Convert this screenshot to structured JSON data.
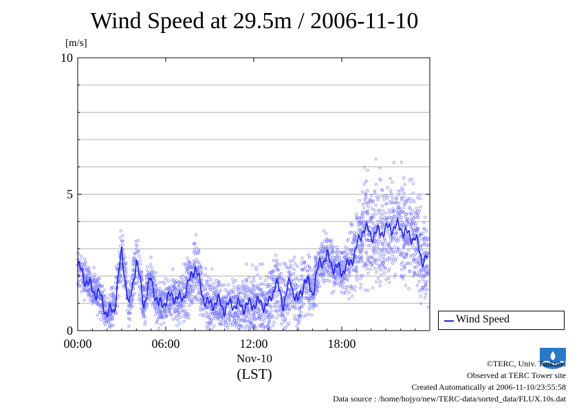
{
  "title": "Wind Speed at 29.5m / 2006-11-10",
  "y_unit": "[m/s]",
  "x_date_label": "Nov-10",
  "x_tz_label": "(LST)",
  "legend": {
    "label": "Wind Speed"
  },
  "footer": {
    "copyright": "©TERC, Univ. Tsukuba",
    "observed": "Observed at TERC Tower site",
    "created": "Created Automatically at 2006-11-10/23:55:58",
    "source": "Data source : /home/hojyo/new/TERC-data/sorted_data/FLUX.10s.dat"
  },
  "logo": {
    "text": "TERC",
    "color": "#2a78c8"
  },
  "colors": {
    "line": "#2222dd",
    "points": "#8080ff",
    "grid": "#b0b0b0"
  },
  "chart_data": {
    "type": "line",
    "title": "Wind Speed at 29.5m / 2006-11-10",
    "ylabel": "[m/s]",
    "xlabel": "Nov-10 (LST)",
    "ylim": [
      0,
      10
    ],
    "xlim": [
      0,
      24
    ],
    "x_ticks": [
      0,
      6,
      12,
      18
    ],
    "x_tick_labels": [
      "00:00",
      "06:00",
      "12:00",
      "18:00"
    ],
    "y_ticks": [
      0,
      5,
      10
    ],
    "y_tick_labels": [
      "0",
      "5",
      "10"
    ],
    "grid": true,
    "legend_position": "bottom-right outside",
    "series": [
      {
        "name": "Wind Speed",
        "x": [
          0,
          0.5,
          1,
          1.5,
          2,
          2.5,
          3,
          3.5,
          4,
          4.5,
          5,
          5.5,
          6,
          6.5,
          7,
          7.5,
          8,
          8.5,
          9,
          9.5,
          10,
          10.5,
          11,
          11.5,
          12,
          12.5,
          13,
          13.5,
          14,
          14.5,
          15,
          15.5,
          16,
          16.5,
          17,
          17.5,
          18,
          18.5,
          19,
          19.5,
          20,
          20.5,
          21,
          21.5,
          22,
          22.5,
          23,
          23.5
        ],
        "y": [
          2.4,
          1.9,
          1.5,
          1.3,
          0.6,
          0.8,
          2.9,
          0.8,
          2.6,
          1.0,
          1.9,
          0.9,
          1.1,
          1.3,
          1.1,
          1.6,
          2.4,
          1.3,
          0.9,
          1.1,
          0.8,
          1.0,
          0.9,
          0.9,
          1.0,
          1.0,
          0.9,
          1.8,
          1.0,
          1.8,
          1.0,
          1.9,
          1.4,
          2.5,
          2.7,
          2.3,
          2.2,
          2.4,
          3.0,
          3.8,
          3.5,
          3.6,
          3.7,
          3.8,
          3.8,
          3.5,
          3.4,
          2.6
        ]
      }
    ],
    "scatter_spread": [
      0.4,
      0.4,
      0.4,
      0.4,
      0.4,
      0.5,
      0.6,
      0.5,
      0.6,
      0.5,
      0.5,
      0.5,
      0.4,
      0.5,
      0.5,
      0.7,
      0.7,
      0.6,
      0.6,
      0.6,
      0.6,
      0.6,
      0.6,
      0.7,
      0.7,
      0.7,
      0.7,
      0.7,
      0.7,
      0.7,
      0.7,
      0.7,
      0.5,
      0.5,
      0.5,
      0.5,
      0.5,
      0.7,
      1.0,
      1.1,
      1.2,
      1.2,
      1.2,
      1.2,
      1.2,
      1.1,
      1.1,
      1.0
    ]
  }
}
